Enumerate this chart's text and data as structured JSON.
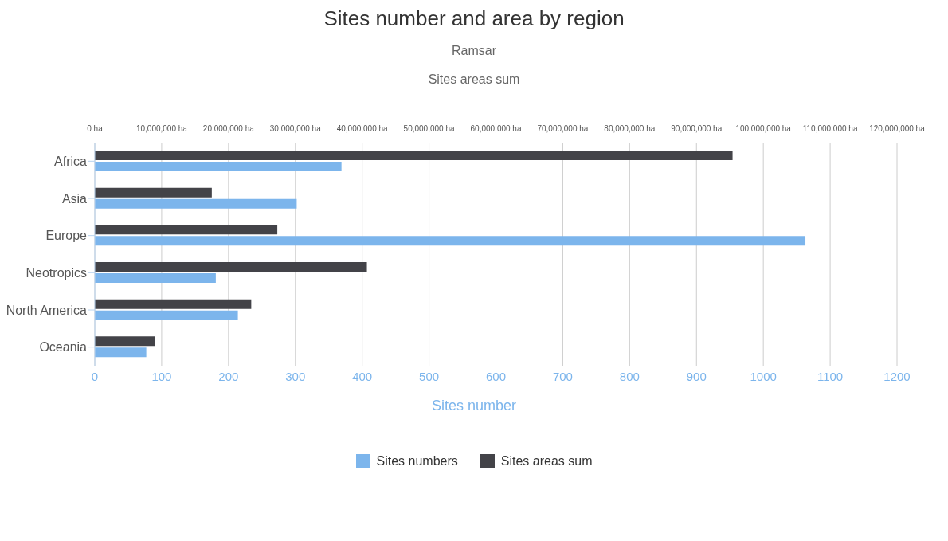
{
  "chart_data": {
    "type": "bar",
    "orientation": "horizontal",
    "title": "Sites number and area by region",
    "subtitle": "Ramsar",
    "xlabel": "Sites number",
    "x2label": "Sites areas sum",
    "categories": [
      "Africa",
      "Asia",
      "Europe",
      "Neotropics",
      "North America",
      "Oceania"
    ],
    "series": [
      {
        "name": "Sites numbers",
        "color": "#7cb5ec",
        "values": [
          369,
          302,
          1063,
          181,
          214,
          77
        ]
      },
      {
        "name": "Sites areas sum",
        "color": "#434348",
        "axis": "x2",
        "values": [
          95400000,
          17500000,
          27300000,
          40700000,
          23400000,
          9000000
        ]
      }
    ],
    "xlim": [
      0,
      1200
    ],
    "xticks": [
      0,
      100,
      200,
      300,
      400,
      500,
      600,
      700,
      800,
      900,
      1000,
      1100,
      1200
    ],
    "x2lim": [
      0,
      120000000
    ],
    "x2ticks": [
      {
        "value": 0,
        "label": "0 ha"
      },
      {
        "value": 10000000,
        "label": "10,000,000 ha"
      },
      {
        "value": 20000000,
        "label": "20,000,000 ha"
      },
      {
        "value": 30000000,
        "label": "30,000,000 ha"
      },
      {
        "value": 40000000,
        "label": "40,000,000 ha"
      },
      {
        "value": 50000000,
        "label": "50,000,000 ha"
      },
      {
        "value": 60000000,
        "label": "60,000,000 ha"
      },
      {
        "value": 70000000,
        "label": "70,000,000 ha"
      },
      {
        "value": 80000000,
        "label": "80,000,000 ha"
      },
      {
        "value": 90000000,
        "label": "90,000,000 ha"
      },
      {
        "value": 100000000,
        "label": "100,000,000 ha"
      },
      {
        "value": 110000000,
        "label": "110,000,000 ha"
      },
      {
        "value": 120000000,
        "label": "120,000,000 ha"
      }
    ],
    "grid": "x",
    "legend": "bottom"
  }
}
